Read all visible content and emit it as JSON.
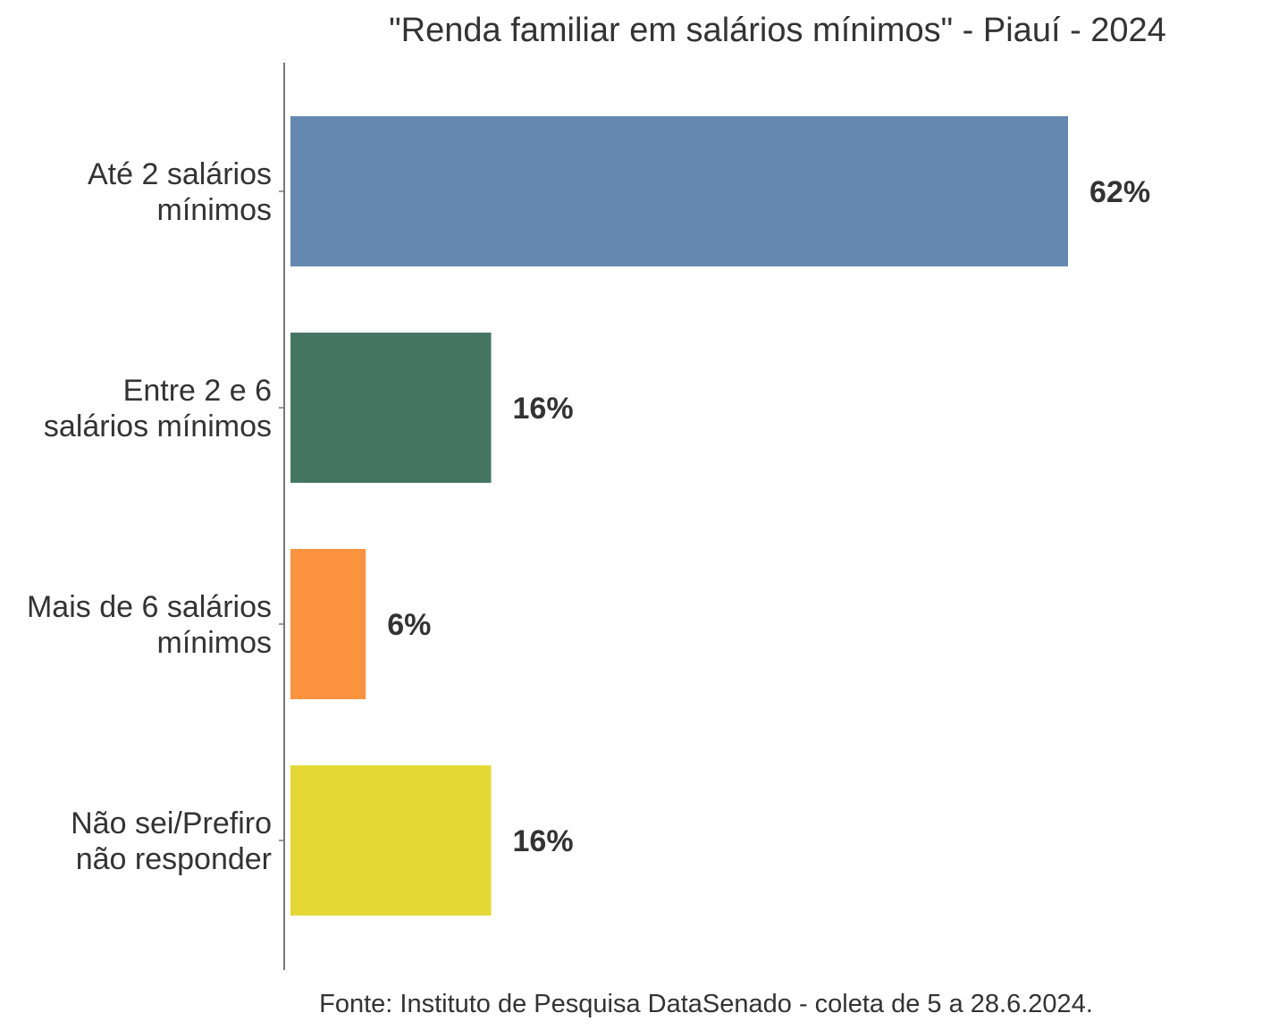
{
  "chart_data": {
    "type": "bar",
    "orientation": "horizontal",
    "title": "\"Renda familiar em salários mínimos\" - Piauí - 2024",
    "categories": [
      [
        "Até 2 salários",
        "mínimos"
      ],
      [
        "Entre 2 e 6",
        "salários mínimos"
      ],
      [
        "Mais de 6 salários",
        "mínimos"
      ],
      [
        "Não sei/Prefiro",
        "não responder"
      ]
    ],
    "values": [
      62,
      16,
      6,
      16
    ],
    "value_labels": [
      "62%",
      "16%",
      "6%",
      "16%"
    ],
    "colors": [
      "#6488b0",
      "#457662",
      "#fa923e",
      "#e4d835"
    ],
    "xlim": [
      0,
      100
    ],
    "grid": false,
    "legend": "none",
    "source": "Fonte: Instituto de Pesquisa DataSenado - coleta de 5 a 28.6.2024."
  }
}
